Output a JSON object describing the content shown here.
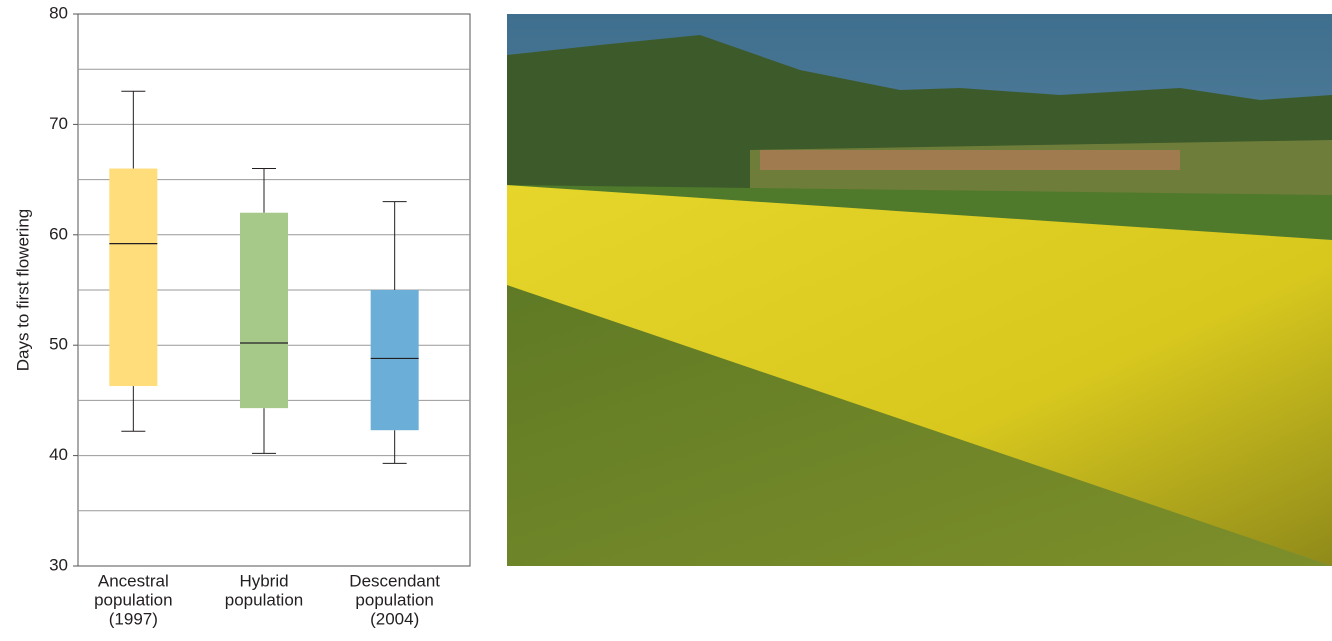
{
  "chart_data": {
    "type": "box",
    "y_label": "Days to first flowering",
    "categories": [
      [
        "Ancestral",
        "population",
        "(1997)"
      ],
      [
        "Hybrid",
        "population"
      ],
      [
        "Descendant",
        "population",
        "(2004)"
      ]
    ],
    "boxes": [
      {
        "color": "#fedd7a",
        "whisker_low": 42.2,
        "q1": 46.3,
        "median": 59.2,
        "q3": 66,
        "whisker_high": 73
      },
      {
        "color": "#a6c98a",
        "whisker_low": 40.2,
        "q1": 44.3,
        "median": 50.2,
        "q3": 62,
        "whisker_high": 66
      },
      {
        "color": "#6baed8",
        "whisker_low": 39.3,
        "q1": 42.3,
        "median": 48.8,
        "q3": 55,
        "whisker_high": 63
      }
    ],
    "ylim": [
      30,
      80
    ],
    "yticks": [
      30,
      40,
      50,
      60,
      70,
      80
    ],
    "gridlines": [
      35,
      40,
      45,
      50,
      55,
      60,
      65,
      70,
      75
    ]
  }
}
